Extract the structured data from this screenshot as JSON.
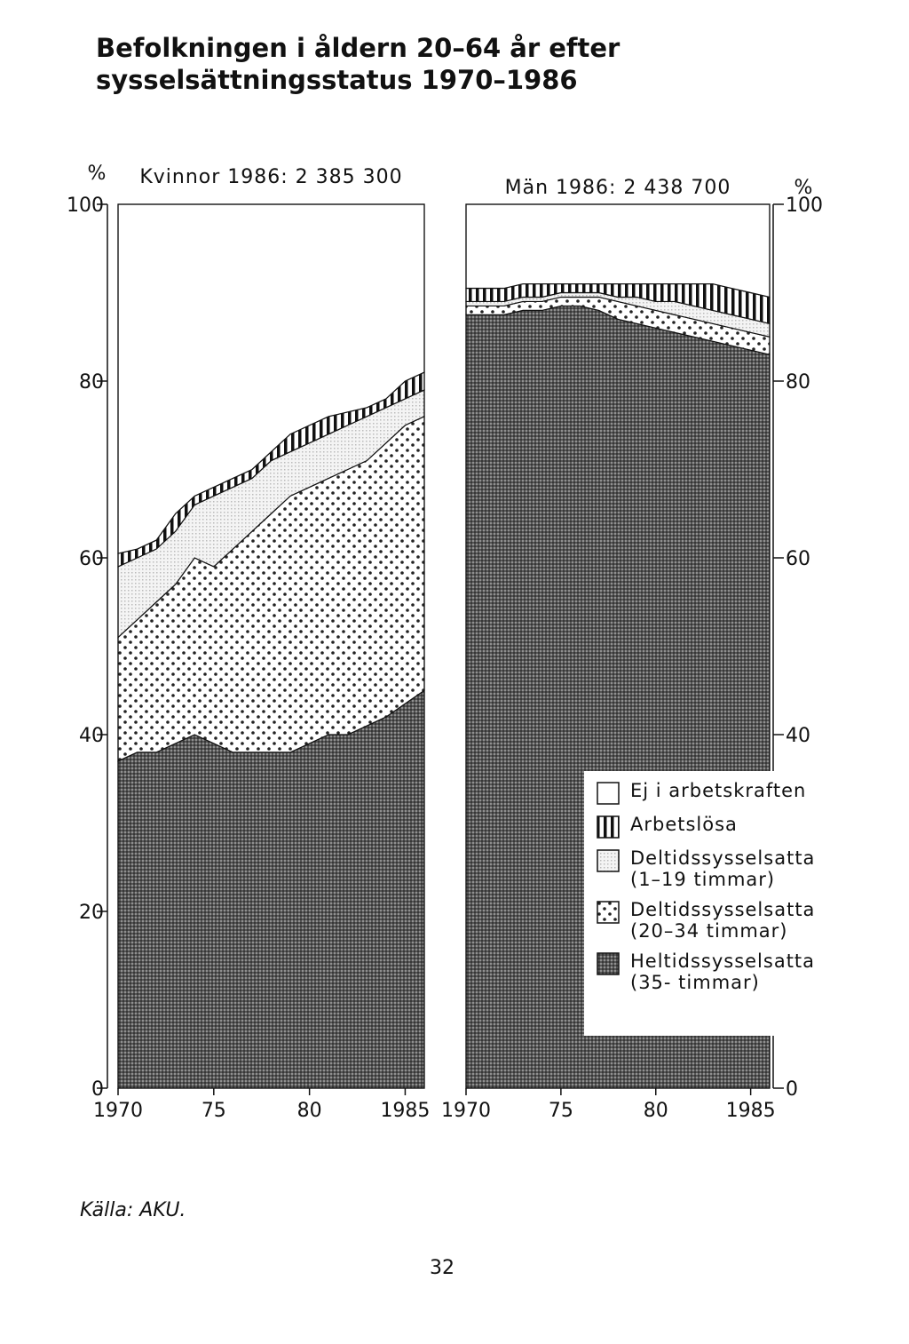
{
  "title": "Befolkningen i åldern 20–64 år efter sysselsättningsstatus 1970–1986",
  "source": "Källa: AKU.",
  "page_number": "32",
  "chart_data": [
    {
      "type": "stacked_area",
      "subtitle": "Kvinnor 1986: 2 385 300",
      "y_label": "%",
      "yaxis_position": "left",
      "x": [
        1970,
        1971,
        1972,
        1973,
        1974,
        1975,
        1976,
        1977,
        1978,
        1979,
        1980,
        1981,
        1982,
        1983,
        1984,
        1985,
        1986
      ],
      "xlim": [
        1970,
        1986
      ],
      "xticks": [
        1970,
        {
          "value": 1975,
          "label": "75"
        },
        {
          "value": 1980,
          "label": "80"
        },
        1985
      ],
      "ylim": [
        0,
        100
      ],
      "yticks": [
        0,
        20,
        40,
        60,
        80,
        100
      ],
      "series": [
        {
          "name": "Heltidssysselsatta (35- timmar)",
          "color": "#555555",
          "pattern": "crosshatch",
          "values": [
            37,
            38,
            38,
            39,
            40,
            39,
            38,
            38,
            38,
            38,
            39,
            40,
            40,
            41,
            42,
            43.5,
            45
          ]
        },
        {
          "name": "Deltidssysselsatta (20–34 timmar)",
          "color": "#222222",
          "pattern": "dots",
          "values": [
            14,
            15,
            17,
            18,
            20,
            20,
            23,
            25,
            27,
            29,
            29,
            29,
            30,
            30,
            31,
            31.5,
            31
          ]
        },
        {
          "name": "Deltidssysselsatta (1–19 timmar)",
          "color": "#bbbbbb",
          "pattern": "stipple",
          "values": [
            8,
            7,
            6,
            6,
            6,
            8,
            7,
            6,
            6,
            5,
            5,
            5,
            5,
            5,
            4,
            3,
            3
          ]
        },
        {
          "name": "Arbetslösa",
          "color": "#111111",
          "pattern": "stripes",
          "values": [
            1.5,
            1,
            1,
            2,
            1,
            1,
            1,
            1,
            1,
            2,
            2,
            2,
            1.5,
            1,
            1,
            2,
            2
          ]
        },
        {
          "name": "Ej i arbetskraften",
          "color": "#ffffff",
          "pattern": "none",
          "values": [
            39.5,
            39,
            38,
            35,
            33,
            32,
            31,
            30,
            28,
            26,
            25,
            24,
            23.5,
            23,
            22,
            20,
            19
          ]
        }
      ]
    },
    {
      "type": "stacked_area",
      "subtitle": "Män 1986: 2 438 700",
      "y_label": "%",
      "yaxis_position": "right",
      "legend": "lower right",
      "x": [
        1970,
        1971,
        1972,
        1973,
        1974,
        1975,
        1976,
        1977,
        1978,
        1979,
        1980,
        1981,
        1982,
        1983,
        1984,
        1985,
        1986
      ],
      "xlim": [
        1970,
        1986
      ],
      "xticks": [
        1970,
        {
          "value": 1975,
          "label": "75"
        },
        {
          "value": 1980,
          "label": "80"
        },
        1985
      ],
      "ylim": [
        0,
        100
      ],
      "yticks": [
        0,
        40,
        60,
        80,
        100
      ],
      "series": [
        {
          "name": "Heltidssysselsatta (35- timmar)",
          "color": "#555555",
          "pattern": "crosshatch",
          "values": [
            87.5,
            87.5,
            87.5,
            88,
            88,
            88.5,
            88.5,
            88,
            87,
            86.5,
            86,
            85.5,
            85,
            84.5,
            84,
            83.5,
            83
          ]
        },
        {
          "name": "Deltidssysselsatta (20–34 timmar)",
          "color": "#222222",
          "pattern": "dots",
          "values": [
            1,
            1,
            1,
            1,
            1,
            1,
            1,
            1.5,
            2,
            2,
            2,
            2,
            2,
            2,
            2,
            2,
            2
          ]
        },
        {
          "name": "Deltidssysselsatta (1–19 timmar)",
          "color": "#bbbbbb",
          "pattern": "stipple",
          "values": [
            0.5,
            0.5,
            0.5,
            0.5,
            0.5,
            0.5,
            0.5,
            0.5,
            0.5,
            1,
            1,
            1.5,
            1.5,
            1.5,
            1.5,
            1.5,
            1.5
          ]
        },
        {
          "name": "Arbetslösa",
          "color": "#111111",
          "pattern": "stripes",
          "values": [
            1.5,
            1.5,
            1.5,
            1.5,
            1.5,
            1,
            1,
            1,
            1.5,
            1.5,
            2,
            2,
            2.5,
            3,
            3,
            3,
            3
          ]
        },
        {
          "name": "Ej i arbetskraften",
          "color": "#ffffff",
          "pattern": "none",
          "values": [
            9.5,
            9.5,
            9.5,
            9,
            9,
            9,
            9,
            9,
            9,
            9,
            9,
            9,
            9,
            9,
            9.5,
            10,
            10.5
          ]
        }
      ]
    }
  ]
}
